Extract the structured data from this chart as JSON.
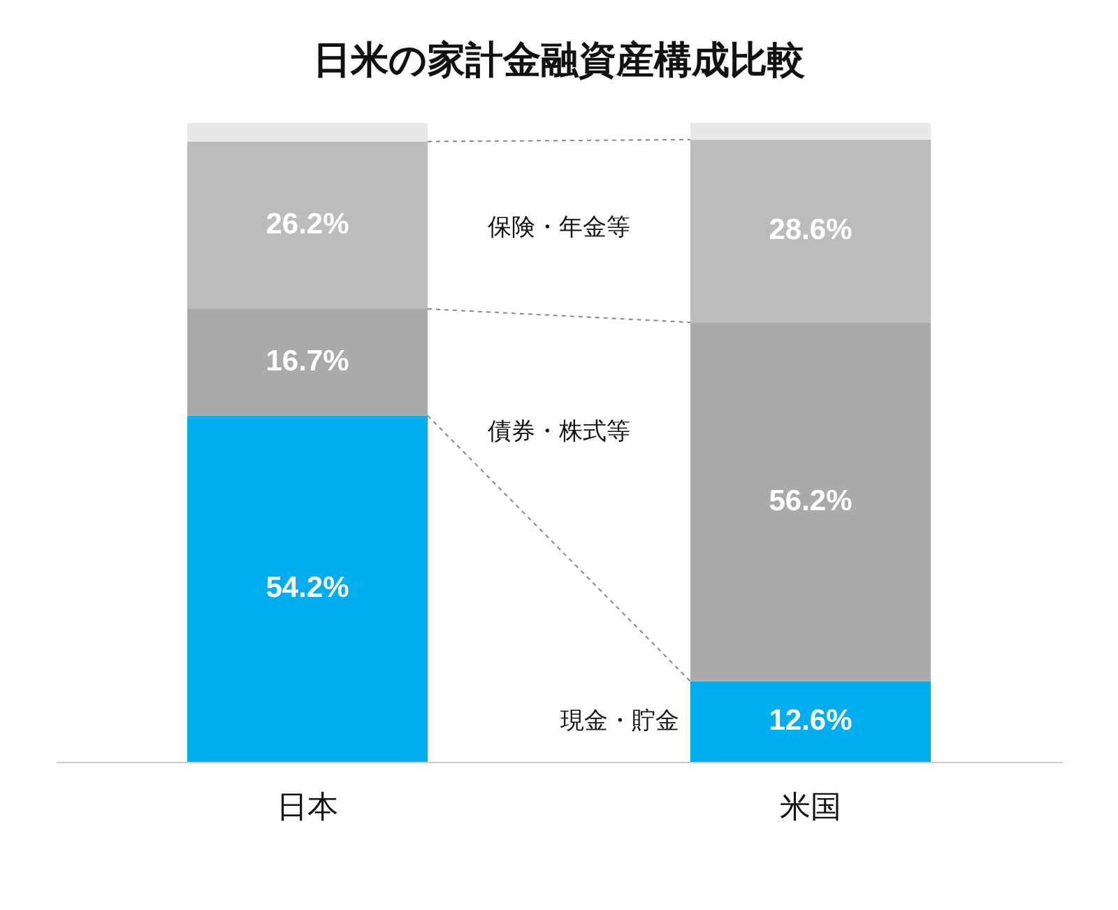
{
  "chart_data": {
    "type": "bar",
    "title": "日米の家計金融資産構成比較",
    "categories": [
      "日本",
      "米国"
    ],
    "stacked": true,
    "legend": false,
    "series": [
      {
        "name": "現金・貯金",
        "color": "#00aeef",
        "values": [
          54.2,
          12.6
        ],
        "value_labels": [
          "54.2%",
          "12.6%"
        ]
      },
      {
        "name": "債券・株式等",
        "color": "#aaaaaa",
        "values": [
          16.7,
          56.2
        ],
        "value_labels": [
          "16.7%",
          "56.2%"
        ]
      },
      {
        "name": "保険・年金等",
        "color": "#bcbcbc",
        "values": [
          26.2,
          28.6
        ],
        "value_labels": [
          "26.2%",
          "28.6%"
        ]
      },
      {
        "color": "#e8e8e8",
        "values": [
          2.9,
          2.6
        ],
        "value_labels": [
          null,
          null
        ]
      }
    ]
  }
}
